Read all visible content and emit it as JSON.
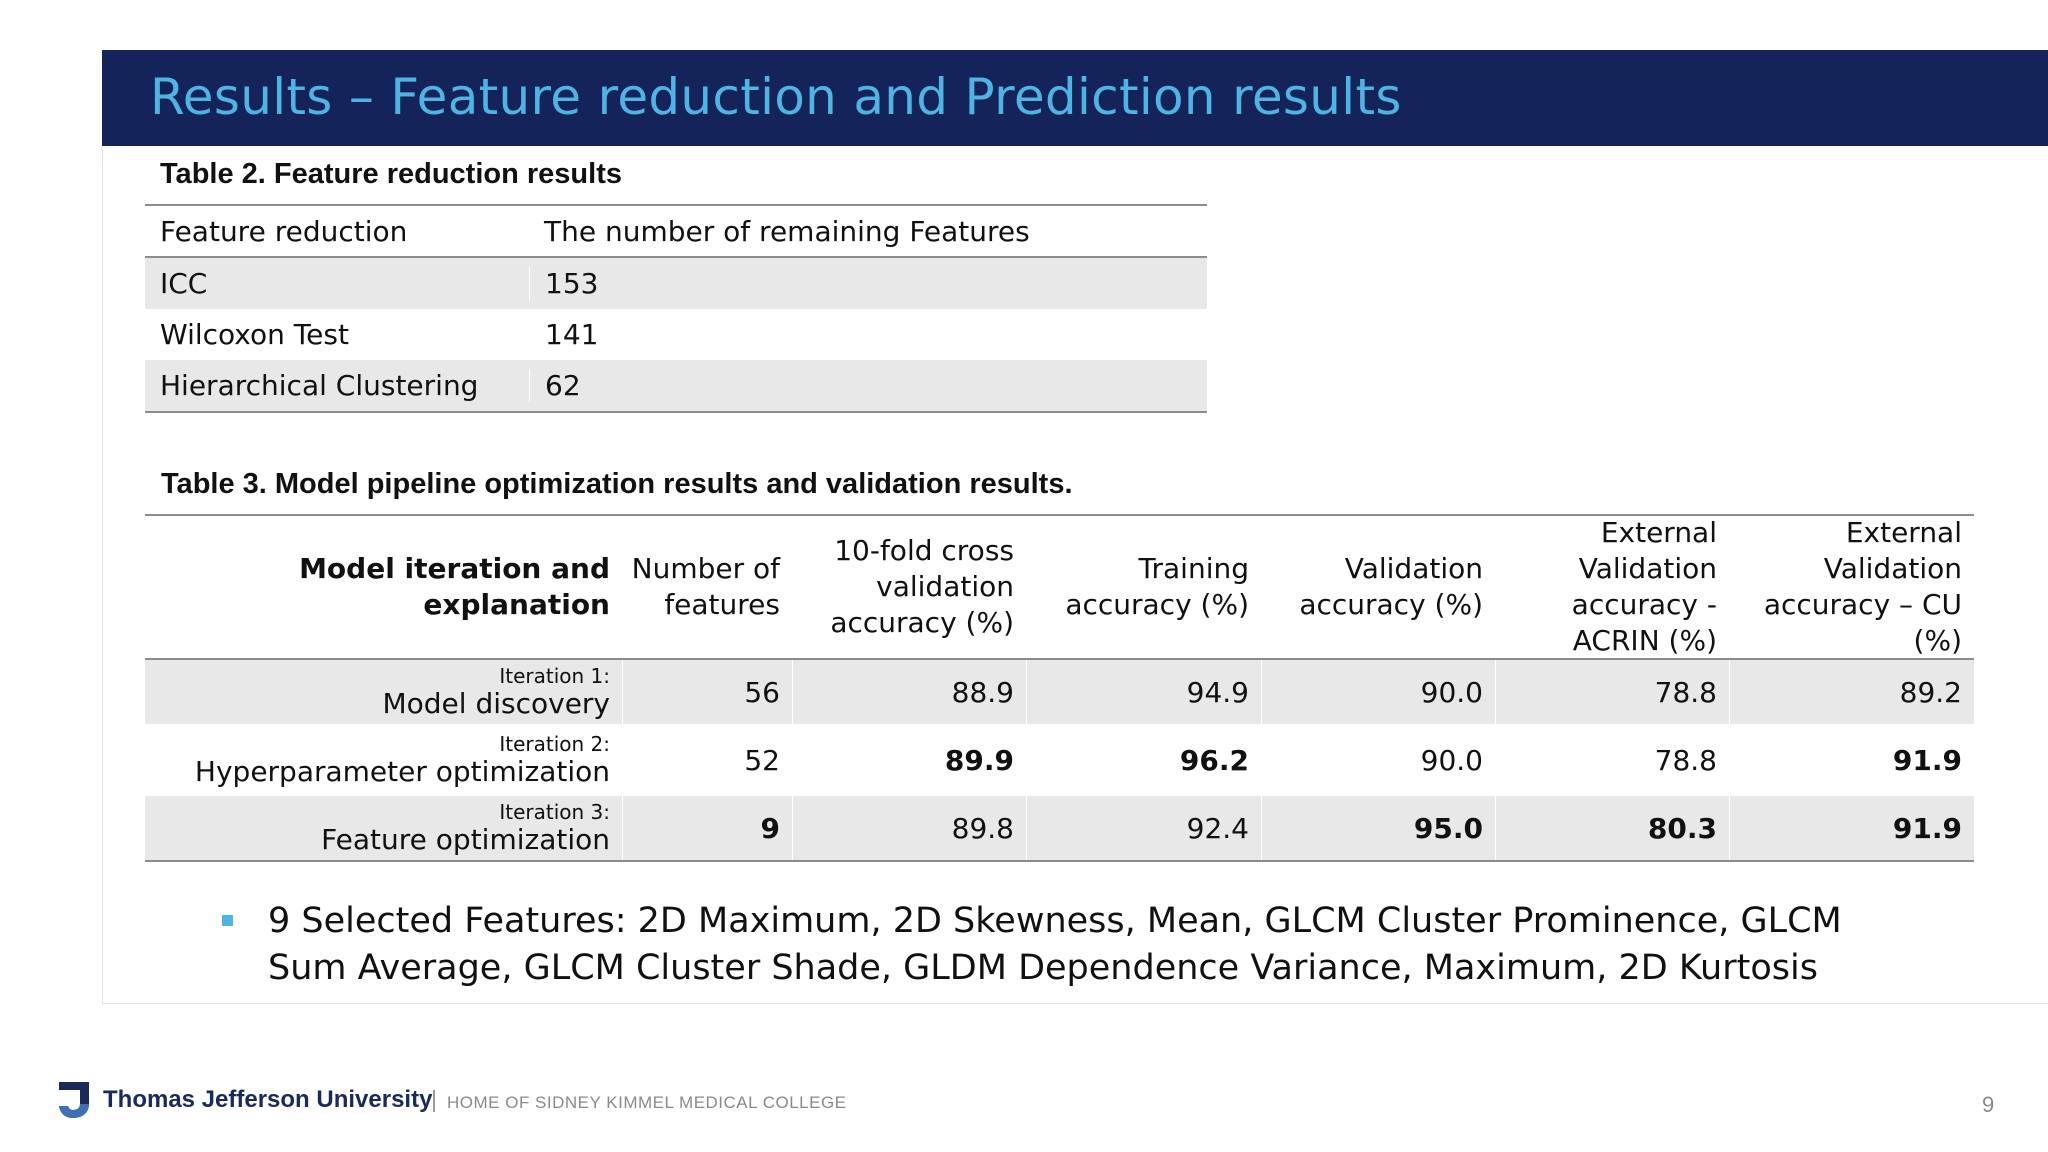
{
  "header": {
    "title": "Results – Feature reduction and Prediction results"
  },
  "table2": {
    "caption": "Table 2. Feature reduction results",
    "columns": [
      "Feature reduction",
      "The number of remaining Features"
    ],
    "rows": [
      [
        "ICC",
        "153"
      ],
      [
        "Wilcoxon Test",
        "141"
      ],
      [
        "Hierarchical Clustering",
        "62"
      ]
    ]
  },
  "table3": {
    "caption": "Table 3. Model pipeline optimization results and validation results.",
    "columns": [
      "Model iteration and explanation",
      "Number of features",
      "10-fold cross validation accuracy (%)",
      "Training accuracy (%)",
      "Validation accuracy (%)",
      "External Validation accuracy - ACRIN (%)",
      "External Validation accuracy – CU (%)"
    ],
    "rows": [
      {
        "iteration": "Iteration 1:",
        "name": "Model discovery",
        "values": [
          "56",
          "88.9",
          "94.9",
          "90.0",
          "78.8",
          "89.2"
        ]
      },
      {
        "iteration": "Iteration 2:",
        "name": "Hyperparameter optimization",
        "values": [
          "52",
          "89.9",
          "96.2",
          "90.0",
          "78.8",
          "91.9"
        ]
      },
      {
        "iteration": "Iteration 3:",
        "name": "Feature optimization",
        "values": [
          "9",
          "89.8",
          "92.4",
          "95.0",
          "80.3",
          "91.9"
        ]
      }
    ]
  },
  "bullet": {
    "text": "9 Selected Features: 2D Maximum, 2D Skewness, Mean, GLCM Cluster Prominence, GLCM Sum Average, GLCM Cluster Shade, GLDM Dependence Variance, Maximum, 2D Kurtosis"
  },
  "footer": {
    "university": "Thomas Jefferson University",
    "subtitle": "HOME OF SIDNEY KIMMEL MEDICAL COLLEGE",
    "page_number": "9"
  },
  "colors": {
    "title_bar": "#14245a",
    "title_text": "#4fb3e3",
    "row_shade": "#e8e8e8",
    "bullet": "#4fb3e3"
  }
}
